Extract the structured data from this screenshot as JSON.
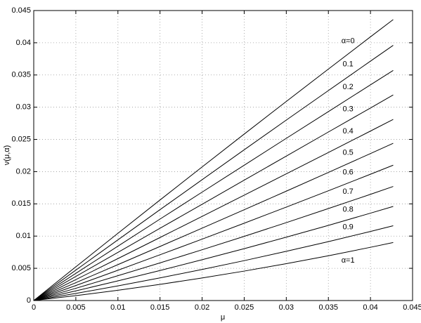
{
  "chart_data": {
    "type": "line",
    "xlabel": "μ",
    "ylabel": "ν(μ,α)",
    "x": [
      0,
      0.005,
      0.01,
      0.015,
      0.02,
      0.025,
      0.03,
      0.035,
      0.04,
      0.0427
    ],
    "series": [
      {
        "name": "α=0",
        "color": "#000000",
        "values": [
          0,
          0.00523,
          0.01043,
          0.0156,
          0.02073,
          0.02583,
          0.03089,
          0.03592,
          0.04092,
          0.0436
        ]
      },
      {
        "name": "0.1",
        "color": "#000000",
        "values": [
          0,
          0.00472,
          0.00942,
          0.0141,
          0.01875,
          0.02339,
          0.028,
          0.03258,
          0.03715,
          0.0396
        ]
      },
      {
        "name": "0.2",
        "color": "#000000",
        "values": [
          0,
          0.00422,
          0.00844,
          0.01264,
          0.01682,
          0.021,
          0.02517,
          0.02932,
          0.03347,
          0.0357
        ]
      },
      {
        "name": "0.3",
        "color": "#000000",
        "values": [
          0,
          0.00374,
          0.00747,
          0.01121,
          0.01494,
          0.01868,
          0.02241,
          0.02615,
          0.02988,
          0.0319
        ]
      },
      {
        "name": "0.4",
        "color": "#000000",
        "values": [
          0,
          0.00325,
          0.00651,
          0.00978,
          0.01306,
          0.01635,
          0.01966,
          0.02297,
          0.0263,
          0.0281
        ]
      },
      {
        "name": "0.5",
        "color": "#000000",
        "values": [
          0,
          0.00277,
          0.00557,
          0.00839,
          0.01123,
          0.01409,
          0.01697,
          0.01988,
          0.02281,
          0.0244
        ]
      },
      {
        "name": "0.6",
        "color": "#000000",
        "values": [
          0,
          0.00233,
          0.0047,
          0.0071,
          0.00953,
          0.012,
          0.0145,
          0.01703,
          0.0196,
          0.021
        ]
      },
      {
        "name": "0.7",
        "color": "#000000",
        "values": [
          0,
          0.0019,
          0.00385,
          0.00584,
          0.00788,
          0.00996,
          0.01209,
          0.01427,
          0.01648,
          0.0177
        ]
      },
      {
        "name": "0.8",
        "color": "#000000",
        "values": [
          0,
          0.0015,
          0.00305,
          0.00466,
          0.00633,
          0.00805,
          0.00983,
          0.01166,
          0.01356,
          0.0146
        ]
      },
      {
        "name": "0.9",
        "color": "#000000",
        "values": [
          0,
          0.0011,
          0.00228,
          0.00351,
          0.00482,
          0.00619,
          0.00764,
          0.00914,
          0.01072,
          0.0116
        ]
      },
      {
        "name": "α=1",
        "color": "#000000",
        "values": [
          0,
          0.00076,
          0.00159,
          0.00251,
          0.0035,
          0.00457,
          0.00572,
          0.00695,
          0.00826,
          0.009
        ]
      }
    ],
    "xlim": [
      0,
      0.045
    ],
    "xticks": [
      0,
      0.005,
      0.01,
      0.015,
      0.02,
      0.025,
      0.03,
      0.035,
      0.04,
      0.045
    ],
    "ylim": [
      0,
      0.045
    ],
    "yticks": [
      0,
      0.005,
      0.01,
      0.015,
      0.02,
      0.025,
      0.03,
      0.035,
      0.04,
      0.045
    ],
    "grid": true
  }
}
